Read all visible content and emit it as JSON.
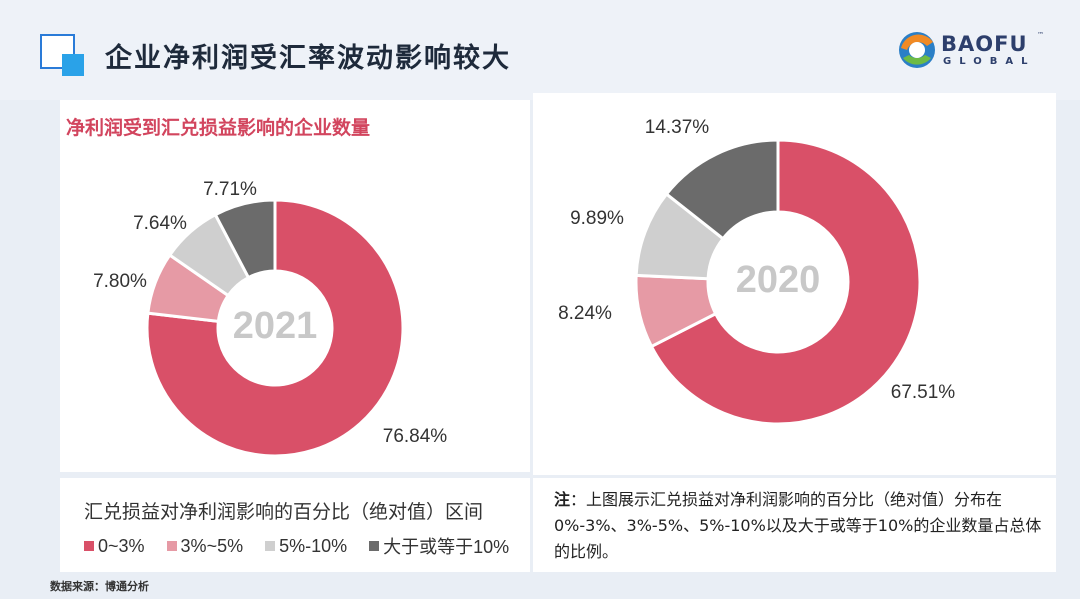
{
  "header": {
    "title": "企业净利润受汇率波动影响较大"
  },
  "logo": {
    "name": "BAOFU",
    "sub": "GLOBAL",
    "tm": "™"
  },
  "chart_title": "净利润受到汇兑损益影响的企业数量",
  "legend": {
    "title": "汇兑损益对净利润影响的百分比（绝对值）区间",
    "items": [
      {
        "label": "0~3%",
        "color": "#d95068"
      },
      {
        "label": "3%~5%",
        "color": "#e69aa5"
      },
      {
        "label": "5%-10%",
        "color": "#cfcfcf"
      },
      {
        "label": "大于或等于10%",
        "color": "#6b6b6b"
      }
    ]
  },
  "chart_data": [
    {
      "type": "pie",
      "subtype": "donut",
      "center_label": "2021",
      "categories": [
        "0~3%",
        "3%~5%",
        "5%-10%",
        "大于或等于10%"
      ],
      "values": [
        76.84,
        7.8,
        7.64,
        7.71
      ],
      "value_labels": [
        "76.84%",
        "7.80%",
        "7.64%",
        "7.71%"
      ],
      "colors": [
        "#d95068",
        "#e69aa5",
        "#cfcfcf",
        "#6b6b6b"
      ]
    },
    {
      "type": "pie",
      "subtype": "donut",
      "center_label": "2020",
      "categories": [
        "0~3%",
        "3%~5%",
        "5%-10%",
        "大于或等于10%"
      ],
      "values": [
        67.51,
        8.24,
        9.89,
        14.37
      ],
      "value_labels": [
        "67.51%",
        "8.24%",
        "9.89%",
        "14.37%"
      ],
      "colors": [
        "#d95068",
        "#e69aa5",
        "#cfcfcf",
        "#6b6b6b"
      ]
    }
  ],
  "note": {
    "label": "注",
    "text": "：上图展示汇兑损益对净利润影响的百分比（绝对值）分布在0%-3%、3%-5%、5%-10%以及大于或等于10%的企业数量占总体的比例。"
  },
  "source": "数据来源：博通分析"
}
